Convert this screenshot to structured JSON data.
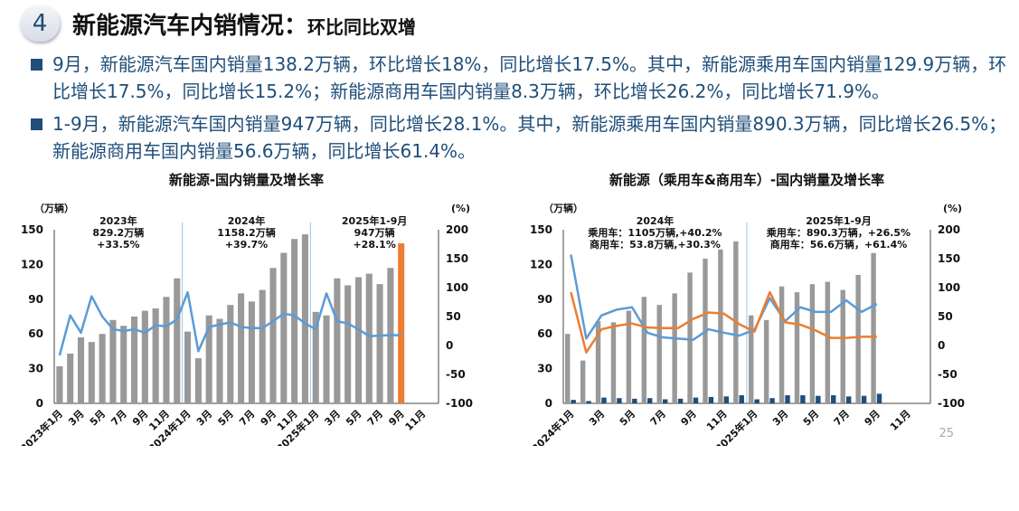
{
  "header": {
    "number": "4",
    "title": "新能源汽车内销情况：",
    "subtitle": "环比同比双增"
  },
  "bullets": [
    "9月，新能源汽车国内销量138.2万辆，环比增长18%，同比增长17.5%。其中，新能源乘用车国内销量129.9万辆，环比增长17.5%，同比增长15.2%；新能源商用车国内销量8.3万辆，环比增长26.2%，同比增长71.9%。",
    "1-9月，新能源汽车国内销量947万辆，同比增长28.1%。其中，新能源乘用车国内销量890.3万辆，同比增长26.5%；新能源商用车国内销量56.6万辆，同比增长61.4%。"
  ],
  "page_number": "25",
  "chart_data": [
    {
      "type": "bar+line",
      "title": "新能源-国内销量及增长率",
      "ylabel": "（万辆）",
      "y2label": "(%)",
      "ylim": [
        0,
        150
      ],
      "y2lim": [
        -100,
        200
      ],
      "yticks": [
        0,
        30,
        60,
        90,
        120,
        150
      ],
      "y2ticks": [
        -100,
        -50,
        0,
        50,
        100,
        150,
        200
      ],
      "start_year": 2023,
      "months": 36,
      "annotations": [
        [
          "2023年",
          "829.2万辆",
          "+33.5%"
        ],
        [
          "2024年",
          "1158.2万辆",
          "+39.7%"
        ],
        [
          "2025年1-9月",
          "947万辆",
          "+28.1%"
        ]
      ],
      "bars": [
        {
          "color": "#999999",
          "highlight_last": "#ed7d31",
          "values": [
            32,
            43,
            57,
            53,
            60,
            72,
            67,
            75,
            80,
            82,
            92,
            108,
            62,
            39,
            76,
            73,
            85,
            95,
            88,
            98,
            117,
            130,
            142,
            146,
            79,
            76,
            108,
            102,
            109,
            112,
            103,
            117,
            138.2
          ]
        }
      ],
      "lines": [
        {
          "color": "#5b9bd5",
          "values": [
            -17,
            52,
            22,
            85,
            50,
            28,
            25,
            28,
            22,
            35,
            33,
            45,
            92,
            -10,
            32,
            36,
            40,
            32,
            30,
            30,
            42,
            55,
            52,
            38,
            28,
            90,
            42,
            38,
            28,
            16,
            17,
            18,
            17.5
          ]
        }
      ]
    },
    {
      "type": "bar+line",
      "title": "新能源（乘用车&商用车）-国内销量及增长率",
      "ylabel": "（万辆）",
      "y2label": "(%)",
      "ylim": [
        0,
        150
      ],
      "y2lim": [
        -100,
        200
      ],
      "yticks": [
        0,
        30,
        60,
        90,
        120,
        150
      ],
      "y2ticks": [
        -100,
        -50,
        0,
        50,
        100,
        150,
        200
      ],
      "start_year": 2024,
      "months": 24,
      "annotations": [
        [
          "2024年",
          "乘用车：1105万辆,+40.2%",
          "商用车：53.8万辆,+30.3%"
        ],
        [
          "2025年1-9月",
          "乘用车：890.3万辆，+26.5%",
          "商用车：56.6万辆，+61.4%"
        ]
      ],
      "bars": [
        {
          "color": "#999999",
          "values": [
            60,
            37,
            71,
            70,
            80,
            92,
            85,
            95,
            113,
            125,
            133,
            140,
            76,
            72,
            101,
            96,
            103,
            105,
            98,
            111,
            129.9
          ]
        },
        {
          "color": "#1f4e79",
          "values": [
            3,
            2,
            5,
            4.5,
            4,
            4.5,
            3.5,
            4,
            5,
            5.5,
            6,
            7,
            3.5,
            4.5,
            7,
            7,
            6.5,
            7,
            6,
            6.5,
            8.3
          ]
        }
      ],
      "lines": [
        {
          "color": "#5b9bd5",
          "values": [
            157,
            12,
            52,
            62,
            66,
            22,
            14,
            12,
            10,
            28,
            22,
            17,
            27,
            82,
            42,
            66,
            58,
            58,
            78,
            58,
            71.9
          ]
        },
        {
          "color": "#ed7d31",
          "values": [
            92,
            -12,
            28,
            34,
            38,
            31,
            30,
            30,
            46,
            57,
            55,
            37,
            24,
            92,
            40,
            36,
            26,
            13,
            13,
            15,
            15.2
          ]
        }
      ]
    }
  ]
}
